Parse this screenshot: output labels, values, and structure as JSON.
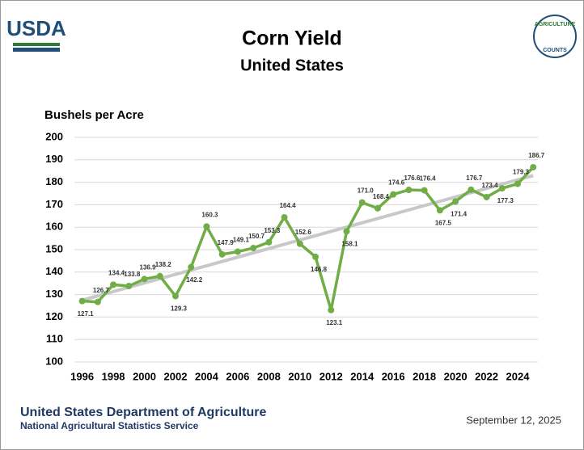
{
  "header": {
    "logo": "USDA",
    "badge_top": "AGRICULTURE",
    "badge_bottom": "COUNTS"
  },
  "chart_data": {
    "type": "line",
    "title": "Corn Yield",
    "subtitle": "United States",
    "y_label": "Bushels per Acre",
    "x": [
      1996,
      1997,
      1998,
      1999,
      2000,
      2001,
      2002,
      2003,
      2004,
      2005,
      2006,
      2007,
      2008,
      2009,
      2010,
      2011,
      2012,
      2013,
      2014,
      2015,
      2016,
      2017,
      2018,
      2019,
      2020,
      2021,
      2022,
      2023,
      2024,
      2025
    ],
    "series": [
      {
        "color": "#70ad47",
        "values": [
          127.1,
          126.7,
          134.4,
          133.8,
          136.9,
          138.2,
          129.3,
          142.2,
          160.3,
          147.9,
          149.1,
          150.7,
          153.3,
          164.4,
          152.6,
          146.8,
          123.1,
          158.1,
          171.0,
          168.4,
          174.6,
          176.6,
          176.4,
          167.5,
          171.4,
          176.7,
          173.4,
          177.3,
          179.3,
          186.7
        ],
        "value_labels": [
          "127.1",
          "126.7",
          "134.4",
          "133.8",
          "136.9",
          "138.2",
          "129.3",
          "142.2",
          "160.3",
          "147.9",
          "149.1",
          "150.7",
          "153.3",
          "164.4",
          "152.6",
          "146.8",
          "123.1",
          "158.1",
          "171.0",
          "168.4",
          "174.6",
          "176.6",
          "176.4",
          "167.5",
          "171.4",
          "176.7",
          "173.4",
          "177.3",
          "179.3",
          "186.7"
        ]
      }
    ],
    "trendline": {
      "color": "#c8c8c8",
      "x": [
        1996,
        2025
      ],
      "values": [
        127.5,
        183
      ]
    },
    "xlim": [
      1995.5,
      2025.3
    ],
    "xticks": [
      1996,
      1998,
      2000,
      2002,
      2004,
      2006,
      2008,
      2010,
      2012,
      2014,
      2016,
      2018,
      2020,
      2022,
      2024
    ],
    "ylim": [
      100,
      200
    ],
    "yticks": [
      100,
      110,
      120,
      130,
      140,
      150,
      160,
      170,
      180,
      190,
      200
    ],
    "grid": true
  },
  "footer": {
    "org": "United States Department of Agriculture",
    "agency": "National Agricultural Statistics Service",
    "date": "September 12, 2025"
  }
}
